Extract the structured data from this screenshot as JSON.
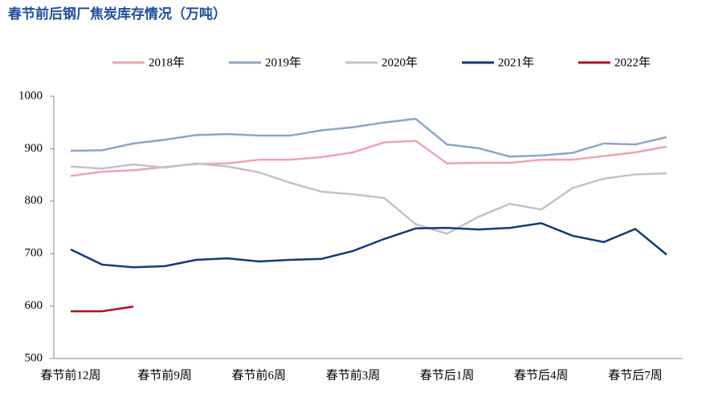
{
  "chart_data": {
    "type": "line",
    "title": "春节前后钢厂焦炭库存情况（万吨）",
    "categories": [
      "春节前12周",
      null,
      null,
      "春节前9周",
      null,
      null,
      "春节前6周",
      null,
      null,
      "春节前3周",
      null,
      null,
      "春节后1周",
      null,
      null,
      "春节后4周",
      null,
      null,
      "春节后7周",
      null
    ],
    "series": [
      {
        "name": "2018年",
        "color": "#f0a3ab",
        "values": [
          848,
          856,
          859,
          865,
          871,
          872,
          879,
          879,
          884,
          893,
          912,
          915,
          872,
          873,
          873,
          879,
          879,
          886,
          893,
          904
        ]
      },
      {
        "name": "2019年",
        "color": "#8fa4c9",
        "values": [
          896,
          897,
          910,
          917,
          926,
          928,
          925,
          925,
          935,
          941,
          950,
          957,
          908,
          901,
          885,
          887,
          892,
          910,
          908,
          922
        ]
      },
      {
        "name": "2020年",
        "color": "#c3c3c3",
        "values": [
          866,
          862,
          870,
          864,
          872,
          866,
          855,
          835,
          818,
          813,
          806,
          756,
          738,
          770,
          795,
          784,
          825,
          843,
          851,
          853
        ]
      },
      {
        "name": "2021年",
        "color": "#0f3b7c",
        "values": [
          708,
          679,
          674,
          676,
          688,
          691,
          685,
          688,
          690,
          705,
          728,
          748,
          749,
          746,
          749,
          758,
          734,
          722,
          747,
          698
        ]
      },
      {
        "name": "2022年",
        "color": "#b0101f",
        "values": [
          590,
          590,
          599,
          null,
          null,
          null,
          null,
          null,
          null,
          null,
          null,
          null,
          null,
          null,
          null,
          null,
          null,
          null,
          null,
          null
        ]
      }
    ],
    "ylim": [
      500,
      1000
    ],
    "yticks": [
      500,
      600,
      700,
      800,
      900,
      1000
    ],
    "grid": false,
    "legend": "top"
  }
}
